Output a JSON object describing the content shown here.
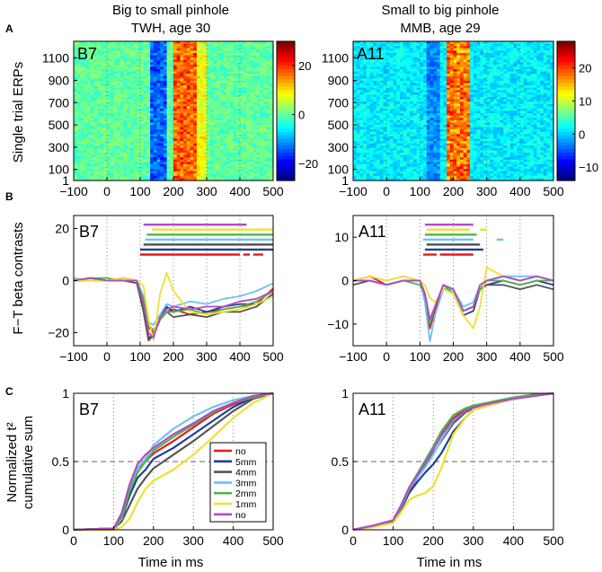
{
  "columns": [
    {
      "title_line1": "Big to small pinhole",
      "title_line2": "TWH, age 30"
    },
    {
      "title_line1": "Small to big pinhole",
      "title_line2": "MMB, age 29"
    }
  ],
  "panel_letters": {
    "A": "A",
    "B": "B",
    "C": "C"
  },
  "ylabels": {
    "A": "Single trial ERPs",
    "B": "F−T beta contrasts",
    "C_line1": "Normalized t²",
    "C_line2": "cumulative sum"
  },
  "xlabel": "Time in ms",
  "colors": {
    "no_red": "#e41a1c",
    "5mm": "#1f3f99",
    "4mm": "#555555",
    "3mm": "#6ec1f0",
    "2mm": "#4cb748",
    "1mm": "#f0e030",
    "no_purple": "#b24bc6",
    "axis": "#000000",
    "grid": "#888888"
  },
  "chart_data": [
    {
      "id": "A-left",
      "type": "heatmap",
      "label": "B7",
      "x": [
        -100,
        0,
        100,
        200,
        300,
        400,
        500
      ],
      "xlim": [
        -100,
        500
      ],
      "yticks": [
        1,
        100,
        300,
        500,
        700,
        900,
        1100
      ],
      "ylim": [
        1,
        1250
      ],
      "colorbar_ticks": [
        -20,
        0,
        20
      ],
      "clim": [
        -27,
        30
      ],
      "features": [
        {
          "name": "negative-band",
          "x_from": 130,
          "x_to": 180,
          "value": -18
        },
        {
          "name": "positive-band",
          "x_from": 200,
          "x_to": 270,
          "value": 22
        },
        {
          "name": "positive-tail",
          "x_from": 270,
          "x_to": 300,
          "value": 10
        }
      ]
    },
    {
      "id": "A-right",
      "type": "heatmap",
      "label": "A11",
      "x": [
        -100,
        0,
        100,
        200,
        300,
        400,
        500
      ],
      "xlim": [
        -100,
        500
      ],
      "yticks": [
        1,
        100,
        300,
        500,
        700,
        900,
        1100
      ],
      "ylim": [
        1,
        1250
      ],
      "colorbar_ticks": [
        -10,
        0,
        10,
        20
      ],
      "clim": [
        -14,
        28
      ],
      "features": [
        {
          "name": "positive-band",
          "x_from": 185,
          "x_to": 245,
          "value": 22
        },
        {
          "name": "negative-band",
          "x_from": 120,
          "x_to": 160,
          "value": -4
        }
      ]
    },
    {
      "id": "B-left",
      "type": "line",
      "label": "B7",
      "xlim": [
        -100,
        500
      ],
      "ylim": [
        -25,
        25
      ],
      "yticks": [
        -20,
        0,
        20
      ],
      "x": [
        -100,
        -50,
        0,
        50,
        90,
        110,
        125,
        140,
        160,
        180,
        200,
        250,
        300,
        350,
        400,
        450,
        500
      ],
      "series": [
        {
          "name": "no",
          "values": [
            0,
            1,
            0,
            1,
            0,
            -8,
            -18,
            -20,
            -15,
            -12,
            -11,
            -13,
            -12,
            -11,
            -10,
            -9,
            -3
          ],
          "sig_bars": [
            [
              100,
              400
            ],
            [
              410,
              430
            ],
            [
              440,
              470
            ]
          ]
        },
        {
          "name": "5mm",
          "values": [
            0,
            0,
            0,
            1,
            0,
            -10,
            -22,
            -21,
            -14,
            -10,
            -12,
            -10,
            -12,
            -10,
            -9,
            -9,
            -6
          ],
          "sig_bars": [
            [
              100,
              500
            ]
          ]
        },
        {
          "name": "4mm",
          "values": [
            0,
            1,
            0,
            0,
            -1,
            -12,
            -23,
            -21,
            -15,
            -12,
            -14,
            -13,
            -14,
            -12,
            -12,
            -10,
            -5
          ],
          "sig_bars": [
            [
              110,
              500
            ]
          ]
        },
        {
          "name": "3mm",
          "values": [
            1,
            0,
            0,
            1,
            0,
            -6,
            -16,
            -17,
            -13,
            -9,
            -10,
            -8,
            -9,
            -7,
            -6,
            -4,
            -1
          ],
          "sig_bars": [
            [
              115,
              500
            ]
          ]
        },
        {
          "name": "2mm",
          "values": [
            0,
            1,
            1,
            0,
            0,
            -7,
            -17,
            -19,
            -15,
            -12,
            -12,
            -11,
            -13,
            -11,
            -10,
            -8,
            -4
          ],
          "sig_bars": [
            [
              120,
              500
            ]
          ]
        },
        {
          "name": "1mm",
          "values": [
            0,
            0,
            0,
            1,
            0,
            -2,
            -15,
            -23,
            -5,
            3,
            -4,
            -12,
            -13,
            -12,
            -11,
            -9,
            -6
          ],
          "sig_bars": [
            [
              135,
              500
            ]
          ]
        },
        {
          "name": "no",
          "values": [
            0,
            1,
            0,
            0,
            0,
            -9,
            -20,
            -22,
            -14,
            -11,
            -10,
            -11,
            -10,
            -10,
            -8,
            -7,
            -4
          ],
          "sig_bars": [
            [
              110,
              420
            ]
          ]
        }
      ]
    },
    {
      "id": "B-right",
      "type": "line",
      "label": "A11",
      "xlim": [
        -100,
        500
      ],
      "ylim": [
        -15,
        15
      ],
      "yticks": [
        -10,
        0,
        10
      ],
      "x": [
        -100,
        -50,
        0,
        50,
        100,
        115,
        130,
        145,
        170,
        200,
        230,
        260,
        280,
        300,
        350,
        400,
        450,
        500
      ],
      "series": [
        {
          "name": "no",
          "values": [
            0,
            1,
            -1,
            0,
            0,
            -4,
            -11,
            -7,
            -2,
            -2,
            -7,
            -6,
            -2,
            0,
            1,
            0,
            1,
            0
          ],
          "sig_bars": [
            [
              110,
              150
            ],
            [
              160,
              260
            ]
          ]
        },
        {
          "name": "5mm",
          "values": [
            0,
            0,
            -1,
            0,
            0,
            -3,
            -10,
            -6,
            -1,
            -3,
            -8,
            -7,
            -2,
            -1,
            0,
            -1,
            0,
            -1
          ],
          "sig_bars": [
            [
              115,
              290
            ]
          ]
        },
        {
          "name": "4mm",
          "values": [
            -1,
            0,
            -1,
            0,
            0,
            -3,
            -9,
            -6,
            -1,
            -2,
            -7,
            -6,
            -2,
            -1,
            -1,
            -2,
            -1,
            -2
          ],
          "sig_bars": [
            [
              120,
              280
            ]
          ]
        },
        {
          "name": "3mm",
          "values": [
            0,
            1,
            0,
            1,
            0,
            -5,
            -14,
            -8,
            -2,
            -2,
            -6,
            -5,
            -1,
            0,
            1,
            1,
            1,
            0
          ],
          "sig_bars": [
            [
              110,
              260
            ],
            [
              330,
              350
            ]
          ]
        },
        {
          "name": "2mm",
          "values": [
            0,
            0,
            -1,
            0,
            -1,
            -3,
            -10,
            -6,
            -1,
            -3,
            -7,
            -6,
            -2,
            0,
            0,
            -1,
            0,
            0
          ],
          "sig_bars": [
            [
              115,
              270
            ]
          ]
        },
        {
          "name": "1mm",
          "values": [
            0,
            1,
            0,
            1,
            0,
            -1,
            -4,
            -5,
            -2,
            -3,
            -8,
            -11,
            -6,
            3,
            1,
            0,
            1,
            0
          ],
          "sig_bars": [
            [
              120,
              250
            ],
            [
              280,
              300
            ]
          ]
        },
        {
          "name": "no",
          "values": [
            0,
            0,
            -1,
            0,
            0,
            -3,
            -9,
            -6,
            -1,
            -2,
            -7,
            -6,
            -1,
            0,
            1,
            0,
            1,
            0
          ],
          "sig_bars": [
            [
              115,
              260
            ]
          ]
        }
      ]
    },
    {
      "id": "C-left",
      "type": "line",
      "label": "B7",
      "xlim": [
        0,
        500
      ],
      "ylim": [
        0,
        1
      ],
      "yticks": [
        0,
        0.5,
        1
      ],
      "xticks": [
        0,
        100,
        200,
        300,
        400,
        500
      ],
      "hline": 0.5,
      "x": [
        0,
        100,
        120,
        140,
        160,
        180,
        200,
        250,
        300,
        350,
        400,
        450,
        500
      ],
      "series": [
        {
          "name": "no",
          "values": [
            0,
            0.01,
            0.1,
            0.3,
            0.45,
            0.5,
            0.56,
            0.65,
            0.75,
            0.85,
            0.92,
            0.97,
            1
          ]
        },
        {
          "name": "5mm",
          "values": [
            0,
            0.01,
            0.08,
            0.25,
            0.38,
            0.44,
            0.52,
            0.6,
            0.7,
            0.8,
            0.9,
            0.97,
            1
          ]
        },
        {
          "name": "4mm",
          "values": [
            0,
            0.01,
            0.06,
            0.18,
            0.3,
            0.38,
            0.45,
            0.55,
            0.65,
            0.76,
            0.87,
            0.96,
            1
          ]
        },
        {
          "name": "3mm",
          "values": [
            0,
            0.01,
            0.08,
            0.3,
            0.45,
            0.52,
            0.62,
            0.74,
            0.83,
            0.9,
            0.95,
            0.98,
            1
          ]
        },
        {
          "name": "2mm",
          "values": [
            0,
            0.01,
            0.09,
            0.28,
            0.42,
            0.5,
            0.58,
            0.68,
            0.77,
            0.86,
            0.93,
            0.97,
            1
          ]
        },
        {
          "name": "1mm",
          "values": [
            0,
            0.0,
            0.02,
            0.08,
            0.2,
            0.3,
            0.36,
            0.44,
            0.55,
            0.68,
            0.82,
            0.93,
            1
          ]
        },
        {
          "name": "no",
          "values": [
            0,
            0.01,
            0.12,
            0.33,
            0.48,
            0.55,
            0.6,
            0.7,
            0.78,
            0.87,
            0.93,
            0.98,
            1
          ]
        }
      ]
    },
    {
      "id": "C-right",
      "type": "line",
      "label": "A11",
      "xlim": [
        0,
        500
      ],
      "ylim": [
        0,
        1
      ],
      "yticks": [
        0,
        0.5,
        1
      ],
      "xticks": [
        0,
        100,
        200,
        300,
        400,
        500
      ],
      "hline": 0.5,
      "x": [
        0,
        50,
        100,
        120,
        140,
        160,
        180,
        200,
        220,
        250,
        280,
        300,
        350,
        400,
        450,
        500
      ],
      "series": [
        {
          "name": "no",
          "values": [
            0,
            0.03,
            0.07,
            0.18,
            0.3,
            0.4,
            0.5,
            0.6,
            0.7,
            0.82,
            0.88,
            0.9,
            0.93,
            0.96,
            0.98,
            1
          ]
        },
        {
          "name": "5mm",
          "values": [
            0,
            0.03,
            0.06,
            0.15,
            0.27,
            0.35,
            0.42,
            0.48,
            0.56,
            0.72,
            0.82,
            0.88,
            0.92,
            0.96,
            0.98,
            1
          ]
        },
        {
          "name": "4mm",
          "values": [
            0,
            0.03,
            0.06,
            0.16,
            0.28,
            0.38,
            0.47,
            0.56,
            0.65,
            0.78,
            0.86,
            0.89,
            0.93,
            0.96,
            0.98,
            1
          ]
        },
        {
          "name": "3mm",
          "values": [
            0,
            0.03,
            0.07,
            0.17,
            0.3,
            0.38,
            0.46,
            0.55,
            0.66,
            0.8,
            0.87,
            0.9,
            0.93,
            0.96,
            0.98,
            1
          ]
        },
        {
          "name": "2mm",
          "values": [
            0,
            0.03,
            0.07,
            0.18,
            0.31,
            0.41,
            0.51,
            0.61,
            0.72,
            0.84,
            0.89,
            0.91,
            0.94,
            0.97,
            0.99,
            1
          ]
        },
        {
          "name": "1mm",
          "values": [
            0,
            0.02,
            0.05,
            0.13,
            0.22,
            0.25,
            0.27,
            0.32,
            0.45,
            0.7,
            0.82,
            0.88,
            0.92,
            0.96,
            0.98,
            1
          ]
        },
        {
          "name": "no",
          "values": [
            0,
            0.03,
            0.07,
            0.18,
            0.31,
            0.4,
            0.49,
            0.59,
            0.69,
            0.81,
            0.87,
            0.9,
            0.93,
            0.96,
            0.98,
            1
          ]
        }
      ]
    }
  ],
  "legend": {
    "entries": [
      "no",
      "5mm",
      "4mm",
      "3mm",
      "2mm",
      "1mm",
      "no"
    ],
    "placement": "inside C-left, lower-right"
  }
}
